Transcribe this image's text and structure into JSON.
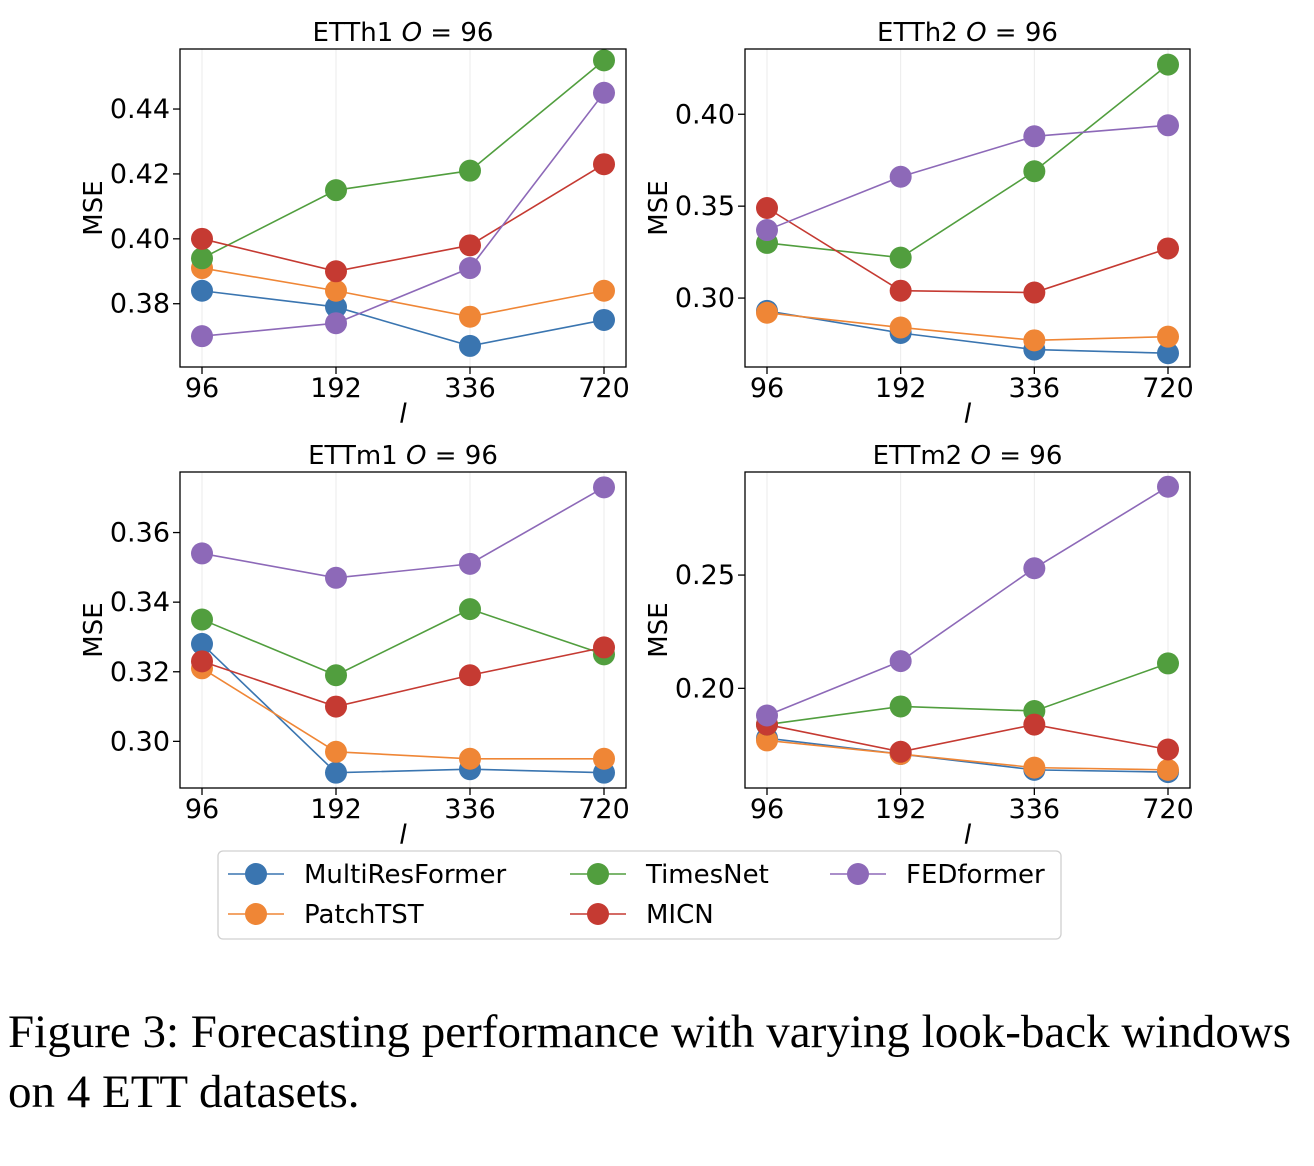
{
  "colors": {
    "MultiResFormer": "#3a75b0",
    "PatchTST": "#ef8636",
    "TimesNet": "#519e3e",
    "MICN": "#c53a32",
    "FEDformer": "#8d69b8",
    "frame": "#000000",
    "grid": "#ebebeb"
  },
  "chart_data": [
    {
      "type": "line",
      "title_prefix": "ETTh1",
      "title_var": "O",
      "title_suffix": " = 96",
      "xlabel": "l",
      "ylabel": "MSE",
      "categories": [
        "96",
        "192",
        "336",
        "720"
      ],
      "ylim": [
        0.3605,
        0.4585
      ],
      "yticks": [
        0.38,
        0.4,
        0.42,
        0.44
      ],
      "ytick_labels": [
        "0.38",
        "0.40",
        "0.42",
        "0.44"
      ],
      "grid": "vertical",
      "series": [
        {
          "name": "MultiResFormer",
          "values": [
            0.384,
            0.379,
            0.367,
            0.375
          ]
        },
        {
          "name": "PatchTST",
          "values": [
            0.391,
            0.384,
            0.376,
            0.384
          ]
        },
        {
          "name": "TimesNet",
          "values": [
            0.394,
            0.415,
            0.421,
            0.455
          ]
        },
        {
          "name": "MICN",
          "values": [
            0.4,
            0.39,
            0.398,
            0.423
          ]
        },
        {
          "name": "FEDformer",
          "values": [
            0.37,
            0.374,
            0.391,
            0.445
          ]
        }
      ]
    },
    {
      "type": "line",
      "title_prefix": "ETTh2",
      "title_var": "O",
      "title_suffix": " = 96",
      "xlabel": "l",
      "ylabel": "MSE",
      "categories": [
        "96",
        "192",
        "336",
        "720"
      ],
      "ylim": [
        0.2625,
        0.4355
      ],
      "yticks": [
        0.3,
        0.35,
        0.4
      ],
      "ytick_labels": [
        "0.30",
        "0.35",
        "0.40"
      ],
      "grid": "vertical",
      "series": [
        {
          "name": "MultiResFormer",
          "values": [
            0.293,
            0.281,
            0.272,
            0.27
          ]
        },
        {
          "name": "PatchTST",
          "values": [
            0.292,
            0.284,
            0.277,
            0.279
          ]
        },
        {
          "name": "TimesNet",
          "values": [
            0.33,
            0.322,
            0.369,
            0.427
          ]
        },
        {
          "name": "MICN",
          "values": [
            0.349,
            0.304,
            0.303,
            0.327
          ]
        },
        {
          "name": "FEDformer",
          "values": [
            0.337,
            0.366,
            0.388,
            0.394
          ]
        }
      ]
    },
    {
      "type": "line",
      "title_prefix": "ETTm1",
      "title_var": "O",
      "title_suffix": " = 96",
      "xlabel": "l",
      "ylabel": "MSE",
      "categories": [
        "96",
        "192",
        "336",
        "720"
      ],
      "ylim": [
        0.2866,
        0.3774
      ],
      "yticks": [
        0.3,
        0.32,
        0.34,
        0.36
      ],
      "ytick_labels": [
        "0.30",
        "0.32",
        "0.34",
        "0.36"
      ],
      "grid": "vertical",
      "series": [
        {
          "name": "MultiResFormer",
          "values": [
            0.328,
            0.291,
            0.292,
            0.291
          ]
        },
        {
          "name": "PatchTST",
          "values": [
            0.321,
            0.297,
            0.295,
            0.295
          ]
        },
        {
          "name": "TimesNet",
          "values": [
            0.335,
            0.319,
            0.338,
            0.325
          ]
        },
        {
          "name": "MICN",
          "values": [
            0.323,
            0.31,
            0.319,
            0.327
          ]
        },
        {
          "name": "FEDformer",
          "values": [
            0.354,
            0.347,
            0.351,
            0.373
          ]
        }
      ]
    },
    {
      "type": "line",
      "title_prefix": "ETTm2",
      "title_var": "O",
      "title_suffix": " = 96",
      "xlabel": "l",
      "ylabel": "MSE",
      "categories": [
        "96",
        "192",
        "336",
        "720"
      ],
      "ylim": [
        0.156,
        0.2955
      ],
      "yticks": [
        0.2,
        0.25
      ],
      "ytick_labels": [
        "0.20",
        "0.25"
      ],
      "grid": "vertical",
      "series": [
        {
          "name": "MultiResFormer",
          "values": [
            0.178,
            0.171,
            0.164,
            0.163
          ]
        },
        {
          "name": "PatchTST",
          "values": [
            0.177,
            0.171,
            0.165,
            0.164
          ]
        },
        {
          "name": "TimesNet",
          "values": [
            0.184,
            0.192,
            0.19,
            0.211
          ]
        },
        {
          "name": "MICN",
          "values": [
            0.184,
            0.172,
            0.184,
            0.173
          ]
        },
        {
          "name": "FEDformer",
          "values": [
            0.188,
            0.212,
            0.253,
            0.289
          ]
        }
      ]
    }
  ],
  "legend": {
    "placement": "bottom-center",
    "items": [
      "MultiResFormer",
      "TimesNet",
      "FEDformer",
      "PatchTST",
      "MICN"
    ]
  },
  "caption": "Figure 3: Forecasting performance with varying look-back windows on 4 ETT datasets."
}
